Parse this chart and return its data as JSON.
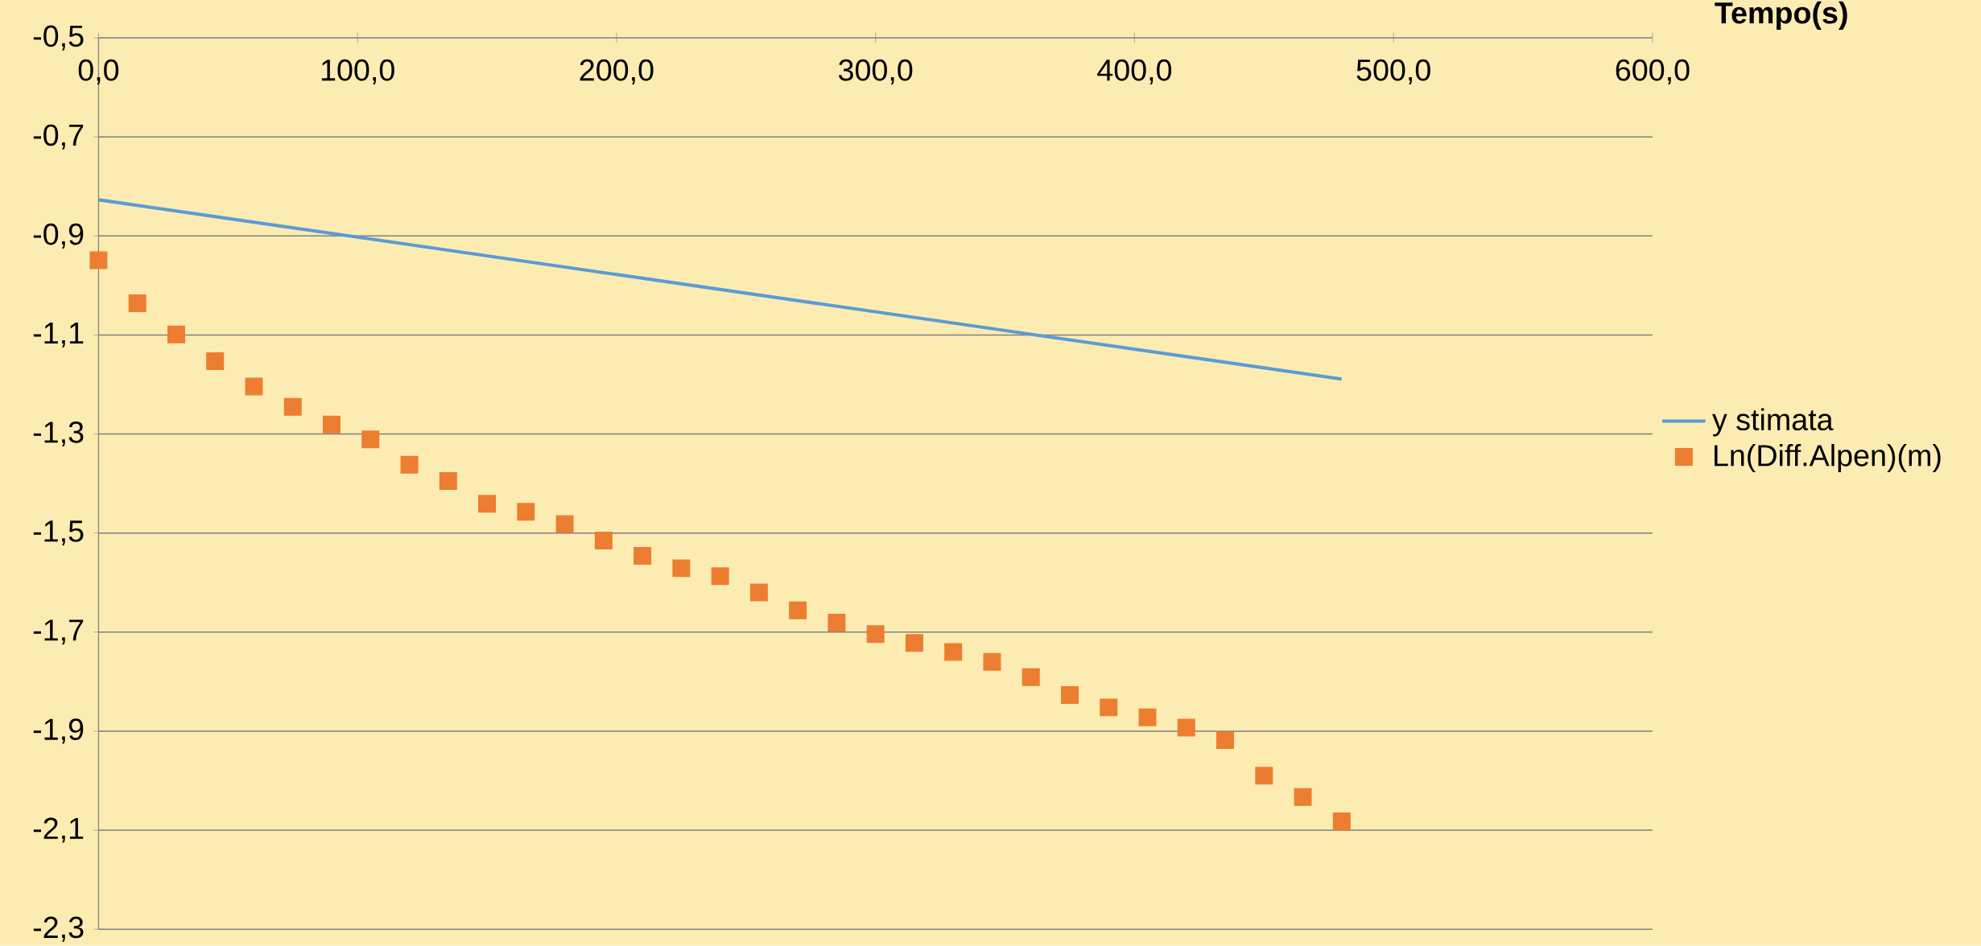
{
  "chart_data": {
    "type": "scatter",
    "xlabel": "Tempo(s)",
    "xlim": [
      0,
      600
    ],
    "xticks": [
      {
        "value": 0,
        "label": "0,0"
      },
      {
        "value": 100,
        "label": "100,0"
      },
      {
        "value": 200,
        "label": "200,0"
      },
      {
        "value": 300,
        "label": "300,0"
      },
      {
        "value": 400,
        "label": "400,0"
      },
      {
        "value": 500,
        "label": "500,0"
      },
      {
        "value": 600,
        "label": "600,0"
      }
    ],
    "ylim": [
      -2.3,
      -0.5
    ],
    "yticks": [
      {
        "value": -2.3,
        "label": "-2,3"
      },
      {
        "value": -2.1,
        "label": "-2,1"
      },
      {
        "value": -1.9,
        "label": "-1,9"
      },
      {
        "value": -1.7,
        "label": "-1,7"
      },
      {
        "value": -1.5,
        "label": "-1,5"
      },
      {
        "value": -1.3,
        "label": "-1,3"
      },
      {
        "value": -1.1,
        "label": "-1,1"
      },
      {
        "value": -0.9,
        "label": "-0,9"
      },
      {
        "value": -0.7,
        "label": "-0,7"
      },
      {
        "value": -0.5,
        "label": "-0,5"
      }
    ],
    "grid": "y",
    "legend": "right",
    "series": [
      {
        "name": "y stimata",
        "type": "line",
        "color": "#5b9bd5",
        "marker": "none",
        "x": [
          0,
          480
        ],
        "values": [
          -0.827,
          -1.189
        ]
      },
      {
        "name": "Ln(Diff.Alpen)(m)",
        "color": "#ed7d31",
        "marker": "square",
        "x": [
          0,
          15,
          30,
          45,
          60,
          75,
          90,
          105,
          120,
          135,
          150,
          165,
          180,
          195,
          210,
          225,
          240,
          255,
          270,
          285,
          300,
          315,
          330,
          345,
          360,
          375,
          390,
          405,
          420,
          435,
          450,
          465,
          480
        ],
        "values": [
          -0.949,
          -1.036,
          -1.099,
          -1.153,
          -1.204,
          -1.245,
          -1.281,
          -1.311,
          -1.362,
          -1.395,
          -1.441,
          -1.457,
          -1.482,
          -1.515,
          -1.546,
          -1.571,
          -1.587,
          -1.62,
          -1.656,
          -1.681,
          -1.704,
          -1.722,
          -1.74,
          -1.76,
          -1.791,
          -1.827,
          -1.852,
          -1.872,
          -1.893,
          -1.918,
          -1.99,
          -2.033,
          -2.082
        ]
      }
    ]
  }
}
